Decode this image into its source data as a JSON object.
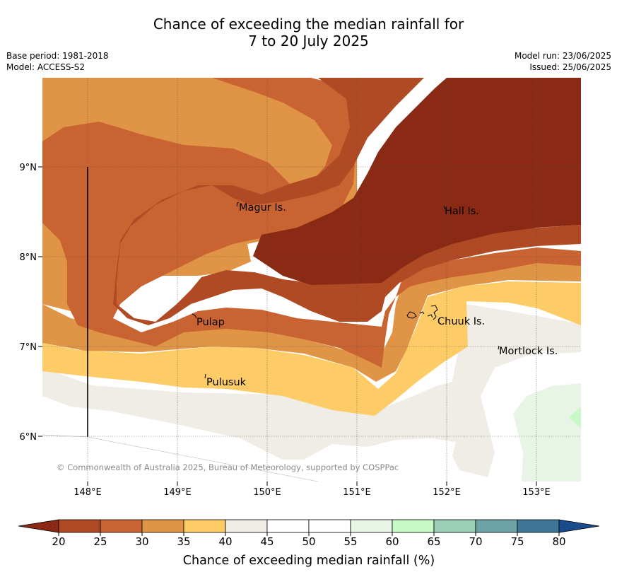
{
  "title": {
    "line1": "Chance of exceeding the median rainfall for",
    "line2": "7 to 20 July 2025"
  },
  "meta_left": {
    "base_period": "Base period: 1981-2018",
    "model": "Model: ACCESS-S2"
  },
  "meta_right": {
    "model_run": "Model run: 23/06/2025",
    "issued": "Issued: 25/06/2025"
  },
  "map": {
    "lat_labels": [
      "9°N",
      "8°N",
      "7°N",
      "6°N"
    ],
    "lon_labels": [
      "148°E",
      "149°E",
      "150°E",
      "151°E",
      "152°E",
      "153°E"
    ],
    "places": [
      "Magur Is.",
      "Hall Is.",
      "Pulap",
      "Chuuk Is.",
      "Mortlock Is.",
      "Pulusuk"
    ],
    "copyright": "© Commonwealth of Australia 2025, Bureau of Meteorology, supported by COSPPac"
  },
  "colorbar": {
    "ticks": [
      "20",
      "25",
      "30",
      "35",
      "40",
      "45",
      "50",
      "55",
      "60",
      "65",
      "70",
      "75",
      "80"
    ],
    "label": "Chance of exceeding median rainfall (%)",
    "colors": {
      "lt20": "#8b2a14",
      "20-25": "#b04a25",
      "25-30": "#c96432",
      "30-35": "#df9446",
      "35-40": "#fdcc66",
      "40-45": "#f0ece6",
      "45-50": "#ffffff",
      "50-55": "#ffffff",
      "55-60": "#e8f5e6",
      "60-65": "#c8f8c8",
      "65-70": "#9ccfb7",
      "70-75": "#6ca3a6",
      "75-80": "#3f7699",
      "gt80": "#1a4b8c"
    }
  }
}
